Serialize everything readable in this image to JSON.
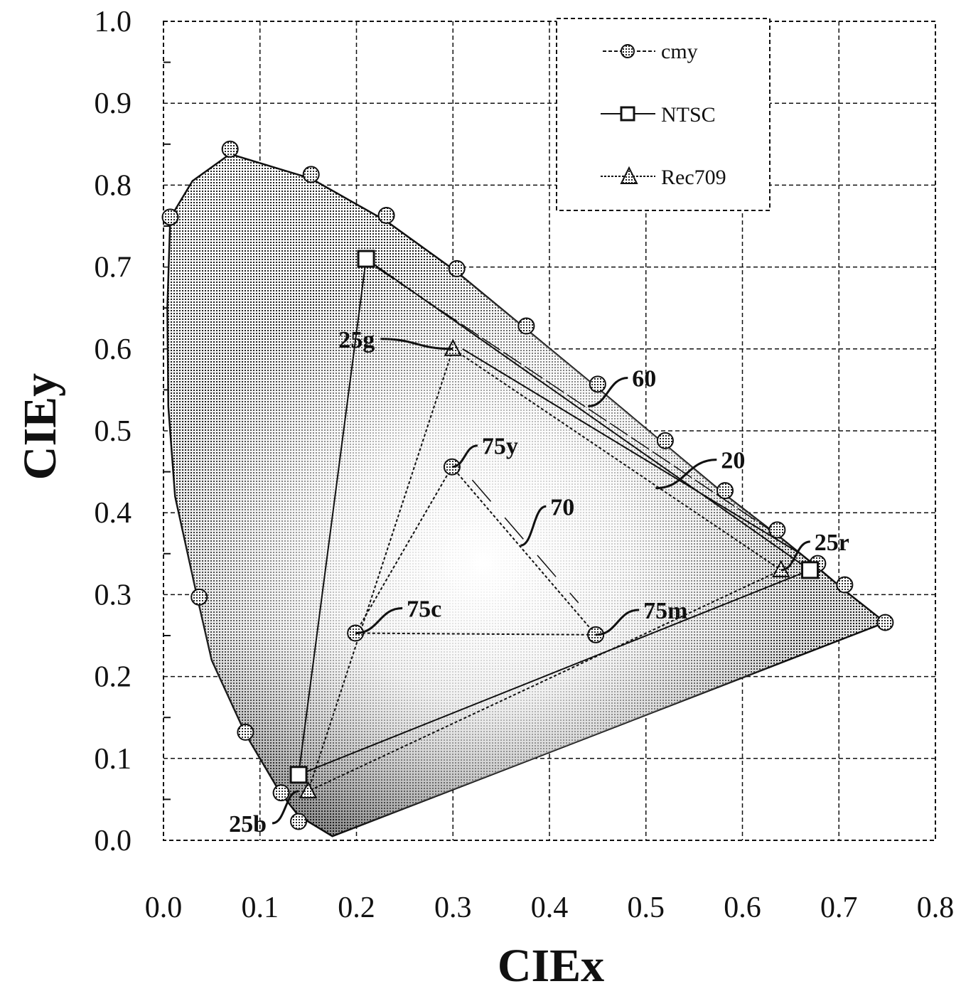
{
  "chart_data": {
    "type": "scatter",
    "title": "",
    "xlabel": "CIEx",
    "ylabel": "CIEy",
    "xlim": [
      0.0,
      0.8
    ],
    "ylim": [
      0.0,
      1.0
    ],
    "grid": true,
    "xticks": [
      "0.0",
      "0.1",
      "0.2",
      "0.3",
      "0.4",
      "0.5",
      "0.6",
      "0.7",
      "0.8"
    ],
    "yticks": [
      "0.0",
      "0.1",
      "0.2",
      "0.3",
      "0.4",
      "0.5",
      "0.6",
      "0.7",
      "0.8",
      "0.9",
      "1.0"
    ],
    "legend_position": "top-right",
    "spectral_locus": [
      [
        0.175,
        0.005
      ],
      [
        0.14,
        0.03
      ],
      [
        0.12,
        0.06
      ],
      [
        0.085,
        0.13
      ],
      [
        0.05,
        0.22
      ],
      [
        0.035,
        0.297
      ],
      [
        0.012,
        0.42
      ],
      [
        0.005,
        0.53
      ],
      [
        0.004,
        0.65
      ],
      [
        0.007,
        0.76
      ],
      [
        0.03,
        0.805
      ],
      [
        0.069,
        0.838
      ],
      [
        0.153,
        0.808
      ],
      [
        0.231,
        0.756
      ],
      [
        0.304,
        0.694
      ],
      [
        0.376,
        0.624
      ],
      [
        0.45,
        0.552
      ],
      [
        0.52,
        0.483
      ],
      [
        0.582,
        0.422
      ],
      [
        0.636,
        0.373
      ],
      [
        0.678,
        0.333
      ],
      [
        0.706,
        0.305
      ],
      [
        0.748,
        0.266
      ]
    ],
    "series": [
      {
        "name": "cmy",
        "marker": "circle",
        "points": [
          [
            0.069,
            0.844
          ],
          [
            0.153,
            0.813
          ],
          [
            0.231,
            0.763
          ],
          [
            0.304,
            0.698
          ],
          [
            0.376,
            0.628
          ],
          [
            0.45,
            0.557
          ],
          [
            0.52,
            0.488
          ],
          [
            0.582,
            0.427
          ],
          [
            0.636,
            0.379
          ],
          [
            0.678,
            0.338
          ],
          [
            0.706,
            0.312
          ],
          [
            0.748,
            0.266
          ],
          [
            0.007,
            0.761
          ],
          [
            0.037,
            0.297
          ],
          [
            0.085,
            0.132
          ],
          [
            0.122,
            0.058
          ],
          [
            0.14,
            0.023
          ],
          [
            0.299,
            0.456
          ],
          [
            0.199,
            0.253
          ],
          [
            0.448,
            0.251
          ]
        ]
      },
      {
        "name": "NTSC",
        "marker": "square",
        "points": [
          [
            0.21,
            0.71
          ],
          [
            0.14,
            0.08
          ],
          [
            0.67,
            0.33
          ]
        ]
      },
      {
        "name": "Rec709",
        "marker": "triangle",
        "points": [
          [
            0.3,
            0.6
          ],
          [
            0.15,
            0.06
          ],
          [
            0.64,
            0.33
          ]
        ]
      }
    ],
    "cmy_triangle": [
      [
        0.299,
        0.456
      ],
      [
        0.199,
        0.253
      ],
      [
        0.448,
        0.251
      ]
    ],
    "annotations": [
      {
        "text": "25g",
        "point": [
          0.3,
          0.6
        ]
      },
      {
        "text": "60",
        "point": [
          0.44,
          0.53
        ]
      },
      {
        "text": "20",
        "point": [
          0.51,
          0.43
        ]
      },
      {
        "text": "75y",
        "point": [
          0.299,
          0.456
        ]
      },
      {
        "text": "70",
        "point": [
          0.37,
          0.36
        ]
      },
      {
        "text": "25r",
        "point": [
          0.64,
          0.33
        ]
      },
      {
        "text": "75c",
        "point": [
          0.199,
          0.253
        ]
      },
      {
        "text": "75m",
        "point": [
          0.448,
          0.251
        ]
      },
      {
        "text": "25b",
        "point": [
          0.14,
          0.06
        ]
      }
    ]
  }
}
